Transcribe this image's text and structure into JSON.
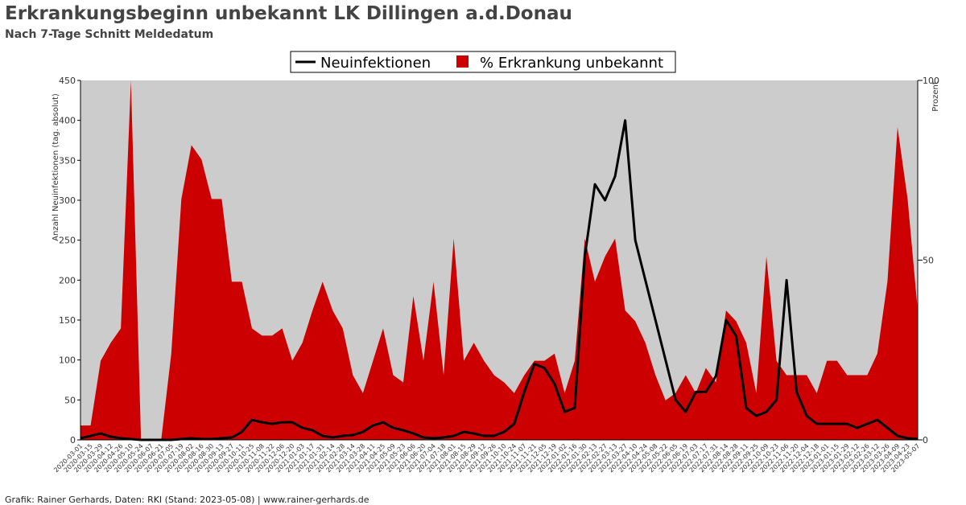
{
  "chart_data": {
    "type": "line_area",
    "title": "Erkrankungsbeginn unbekannt LK Dillingen a.d.Donau",
    "subtitle": "Nach 7-Tage Schnitt Meldedatum",
    "ylabel": "Anzahl Neuinfektionen (tag. absolut)",
    "y2label": "Prozent",
    "footer": "Grafik: Rainer Gerhards, Daten: RKI (Stand: 2023-05-08) | www.rainer-gerhards.de",
    "legend": "top",
    "categories": [
      "2020-03-01",
      "2020-03-15",
      "2020-03-29",
      "2020-04-12",
      "2020-04-26",
      "2020-05-10",
      "2020-05-24",
      "2020-06-07",
      "2020-06-21",
      "2020-07-05",
      "2020-07-19",
      "2020-08-02",
      "2020-08-16",
      "2020-08-30",
      "2020-09-13",
      "2020-09-27",
      "2020-10-11",
      "2020-10-25",
      "2020-11-08",
      "2020-11-22",
      "2020-12-06",
      "2020-12-20",
      "2021-01-03",
      "2021-01-17",
      "2021-01-31",
      "2021-02-14",
      "2021-02-28",
      "2021-03-14",
      "2021-03-28",
      "2021-04-11",
      "2021-04-25",
      "2021-05-09",
      "2021-05-23",
      "2021-06-06",
      "2021-06-20",
      "2021-07-04",
      "2021-07-18",
      "2021-08-01",
      "2021-08-15",
      "2021-08-29",
      "2021-09-12",
      "2021-09-26",
      "2021-10-10",
      "2021-10-24",
      "2021-11-07",
      "2021-11-21",
      "2021-12-05",
      "2021-12-19",
      "2022-01-02",
      "2022-01-16",
      "2022-01-30",
      "2022-02-13",
      "2022-02-27",
      "2022-03-13",
      "2022-03-27",
      "2022-04-10",
      "2022-04-24",
      "2022-05-08",
      "2022-05-22",
      "2022-06-05",
      "2022-06-19",
      "2022-07-03",
      "2022-07-17",
      "2022-07-31",
      "2022-08-14",
      "2022-08-28",
      "2022-09-11",
      "2022-09-25",
      "2022-10-09",
      "2022-10-23",
      "2022-11-06",
      "2022-11-20",
      "2022-12-04",
      "2022-12-18",
      "2023-01-01",
      "2023-01-15",
      "2023-01-29",
      "2023-02-12",
      "2023-02-26",
      "2023-03-12",
      "2023-03-26",
      "2023-04-09",
      "2023-04-23",
      "2023-05-07"
    ],
    "series": [
      {
        "name": "Neuinfektionen",
        "color": "#000000",
        "kind": "line",
        "values": [
          2,
          5,
          8,
          4,
          2,
          1,
          0,
          0,
          0,
          0,
          1,
          2,
          1,
          1,
          2,
          3,
          10,
          25,
          22,
          20,
          22,
          22,
          15,
          12,
          5,
          3,
          5,
          6,
          10,
          18,
          22,
          15,
          12,
          8,
          3,
          2,
          3,
          5,
          10,
          8,
          5,
          5,
          10,
          20,
          60,
          95,
          90,
          70,
          35,
          40,
          230,
          320,
          300,
          330,
          400,
          250,
          200,
          150,
          100,
          50,
          35,
          60,
          60,
          80,
          150,
          130,
          40,
          30,
          35,
          50,
          200,
          60,
          30,
          20,
          20,
          20,
          20,
          15,
          20,
          25,
          15,
          5,
          2,
          1
        ]
      },
      {
        "name": "% Erkrankung unbekannt",
        "color": "#cc0000",
        "kind": "area",
        "axis": "y2",
        "values": [
          4,
          4,
          22,
          27,
          31,
          100,
          0,
          0,
          0,
          24,
          67,
          82,
          78,
          67,
          67,
          44,
          44,
          31,
          29,
          29,
          31,
          22,
          27,
          36,
          44,
          36,
          31,
          18,
          13,
          22,
          31,
          18,
          16,
          40,
          22,
          44,
          18,
          56,
          22,
          27,
          22,
          18,
          16,
          13,
          18,
          22,
          22,
          24,
          13,
          22,
          56,
          44,
          51,
          56,
          36,
          33,
          27,
          18,
          11,
          13,
          18,
          13,
          20,
          16,
          36,
          33,
          27,
          13,
          51,
          22,
          18,
          18,
          18,
          13,
          22,
          22,
          18,
          18,
          18,
          24,
          44,
          87,
          67,
          36
        ]
      }
    ],
    "ylim": [
      0,
      450
    ],
    "yticks": [
      0,
      50,
      100,
      150,
      200,
      250,
      300,
      350,
      400,
      450
    ],
    "y2lim": [
      0,
      100
    ],
    "y2ticks": [
      0,
      50,
      100
    ],
    "background": "#cccccc"
  }
}
